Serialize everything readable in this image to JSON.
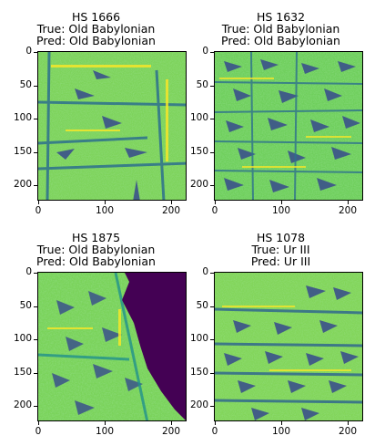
{
  "panels": [
    {
      "id": "HS 1666",
      "true_label": "True: Old Babylonian",
      "pred_label": "Pred: Old Babylonian",
      "xticks": [
        "0",
        "100",
        "200"
      ],
      "yticks": [
        "0",
        "50",
        "100",
        "150",
        "200"
      ]
    },
    {
      "id": "HS 1632",
      "true_label": "True: Old Babylonian",
      "pred_label": "Pred: Old Babylonian",
      "xticks": [
        "0",
        "100",
        "200"
      ],
      "yticks": [
        "0",
        "50",
        "100",
        "150",
        "200"
      ]
    },
    {
      "id": "HS 1875",
      "true_label": "True: Old Babylonian",
      "pred_label": "Pred: Old Babylonian",
      "xticks": [
        "0",
        "100",
        "200"
      ],
      "yticks": [
        "0",
        "50",
        "100",
        "150",
        "200"
      ]
    },
    {
      "id": "HS 1078",
      "true_label": "True: Ur III",
      "pred_label": "Pred: Ur III",
      "xticks": [
        "0",
        "100",
        "200"
      ],
      "yticks": [
        "0",
        "50",
        "100",
        "150",
        "200"
      ]
    }
  ],
  "colors": {
    "viridis_yellow": "#fde725",
    "viridis_green": "#5ec962",
    "viridis_teal": "#21918c",
    "viridis_blue": "#3b528b",
    "viridis_purple": "#440154"
  }
}
